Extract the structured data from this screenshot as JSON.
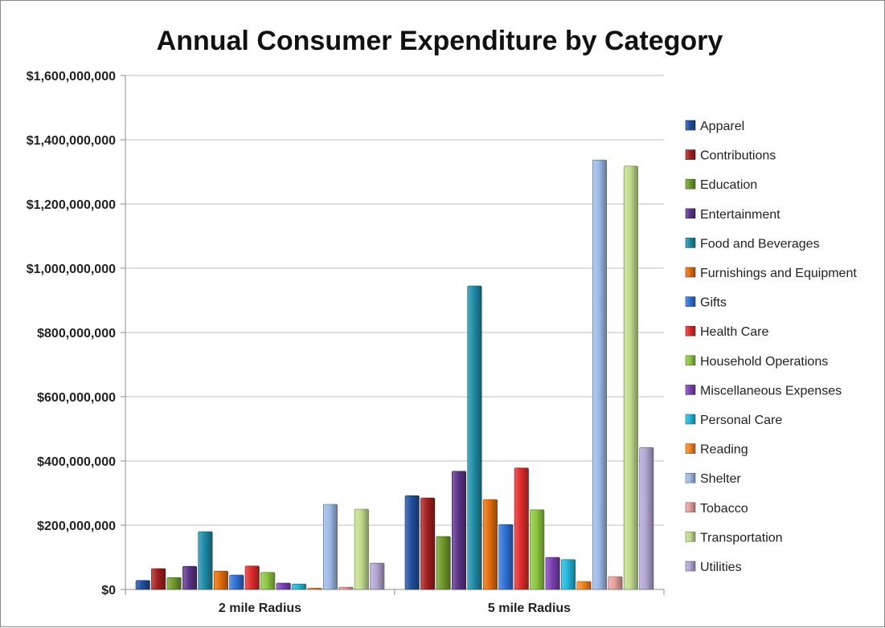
{
  "chart_data": {
    "type": "bar",
    "title": "Annual Consumer Expenditure by Category",
    "xlabel": "",
    "ylabel": "",
    "categories": [
      "2 mile Radius",
      "5 mile Radius"
    ],
    "ylim": [
      0,
      1600000000
    ],
    "yticks": [
      0,
      200000000,
      400000000,
      600000000,
      800000000,
      1000000000,
      1200000000,
      1400000000,
      1600000000
    ],
    "ytick_labels": [
      "$0",
      "$200,000,000",
      "$400,000,000",
      "$600,000,000",
      "$800,000,000",
      "$1,000,000,000",
      "$1,200,000,000",
      "$1,400,000,000",
      "$1,600,000,000"
    ],
    "grid": true,
    "legend_position": "right",
    "series": [
      {
        "name": "Apparel",
        "color": "#1f4e9c",
        "values": [
          28000000,
          292000000
        ]
      },
      {
        "name": "Contributions",
        "color": "#a31e1e",
        "values": [
          65000000,
          285000000
        ]
      },
      {
        "name": "Education",
        "color": "#6f9a2a",
        "values": [
          37000000,
          165000000
        ]
      },
      {
        "name": "Entertainment",
        "color": "#5b3386",
        "values": [
          72000000,
          368000000
        ]
      },
      {
        "name": "Food and Beverages",
        "color": "#1d8aa6",
        "values": [
          180000000,
          945000000
        ]
      },
      {
        "name": "Furnishings and Equipment",
        "color": "#e36c0a",
        "values": [
          57000000,
          280000000
        ]
      },
      {
        "name": "Gifts",
        "color": "#2e6fd6",
        "values": [
          45000000,
          202000000
        ]
      },
      {
        "name": "Health Care",
        "color": "#de2a2a",
        "values": [
          73000000,
          378000000
        ]
      },
      {
        "name": "Household Operations",
        "color": "#8cc63f",
        "values": [
          53000000,
          248000000
        ]
      },
      {
        "name": "Miscellaneous Expenses",
        "color": "#7b3fb3",
        "values": [
          20000000,
          100000000
        ]
      },
      {
        "name": "Personal Care",
        "color": "#22b5d9",
        "values": [
          17000000,
          93000000
        ]
      },
      {
        "name": "Reading",
        "color": "#f58220",
        "values": [
          4000000,
          25000000
        ]
      },
      {
        "name": "Shelter",
        "color": "#9db9e6",
        "values": [
          265000000,
          1337000000
        ]
      },
      {
        "name": "Tobacco",
        "color": "#e6a09a",
        "values": [
          7000000,
          40000000
        ]
      },
      {
        "name": "Transportation",
        "color": "#c3dc8d",
        "values": [
          250000000,
          1318000000
        ]
      },
      {
        "name": "Utilities",
        "color": "#b3a5d1",
        "values": [
          82000000,
          442000000
        ]
      }
    ]
  }
}
